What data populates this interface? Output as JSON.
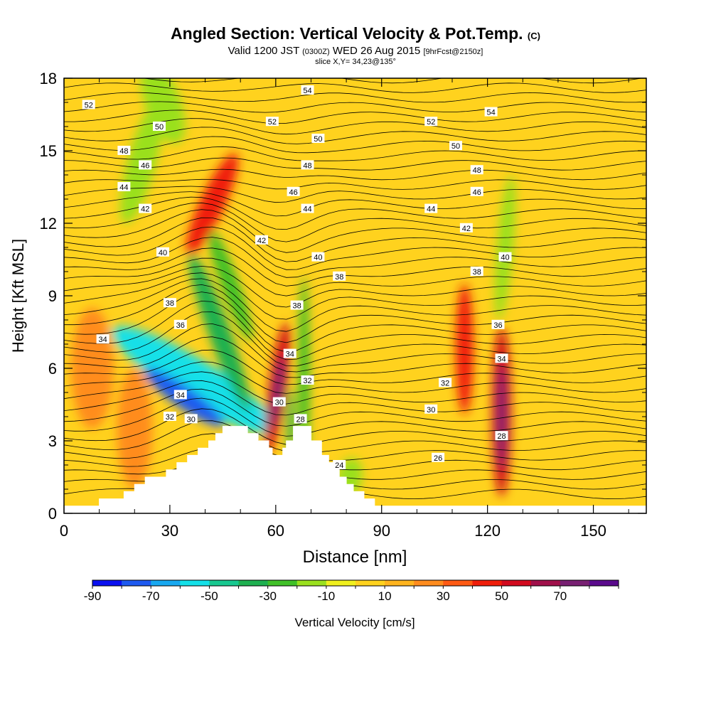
{
  "header": {
    "title": "Angled Section: Vertical Velocity & Pot.Temp.",
    "title_suffix": "(C)",
    "valid_prefix": "Valid 1200 JST",
    "valid_zulu": "(0300Z)",
    "valid_date": "WED 26 Aug 2015",
    "forecast_info": "[9hrFcst@2150z]",
    "slice": "slice X,Y= 34,23@135°"
  },
  "chart_data": {
    "type": "heatmap",
    "xlabel": "Distance [nm]",
    "ylabel": "Height [Kft MSL]",
    "xlim": [
      0,
      165
    ],
    "ylim": [
      0,
      18
    ],
    "xticks": [
      0,
      30,
      60,
      90,
      120,
      150
    ],
    "yticks": [
      0,
      3,
      6,
      9,
      12,
      15,
      18
    ],
    "terrain_kft": [
      [
        0,
        0.3
      ],
      [
        10,
        0.3
      ],
      [
        10,
        0.6
      ],
      [
        17,
        0.6
      ],
      [
        17,
        0.9
      ],
      [
        20,
        0.9
      ],
      [
        20,
        1.2
      ],
      [
        23,
        1.2
      ],
      [
        23,
        1.5
      ],
      [
        29,
        1.5
      ],
      [
        29,
        1.8
      ],
      [
        32,
        1.8
      ],
      [
        32,
        2.1
      ],
      [
        35,
        2.1
      ],
      [
        35,
        2.4
      ],
      [
        38,
        2.4
      ],
      [
        38,
        2.7
      ],
      [
        41,
        2.7
      ],
      [
        41,
        3.0
      ],
      [
        43,
        3.0
      ],
      [
        43,
        3.3
      ],
      [
        45,
        3.3
      ],
      [
        45,
        3.6
      ],
      [
        52,
        3.6
      ],
      [
        52,
        3.3
      ],
      [
        55,
        3.3
      ],
      [
        55,
        3.0
      ],
      [
        58,
        3.0
      ],
      [
        58,
        2.7
      ],
      [
        59,
        2.7
      ],
      [
        59,
        2.4
      ],
      [
        62,
        2.4
      ],
      [
        62,
        2.7
      ],
      [
        63,
        2.7
      ],
      [
        63,
        3.0
      ],
      [
        65,
        3.0
      ],
      [
        65,
        3.6
      ],
      [
        70,
        3.6
      ],
      [
        70,
        3.0
      ],
      [
        73,
        3.0
      ],
      [
        73,
        2.4
      ],
      [
        75,
        2.4
      ],
      [
        75,
        2.1
      ],
      [
        78,
        2.1
      ],
      [
        78,
        1.5
      ],
      [
        80,
        1.5
      ],
      [
        80,
        1.2
      ],
      [
        82,
        1.2
      ],
      [
        82,
        0.9
      ],
      [
        85,
        0.9
      ],
      [
        85,
        0.6
      ],
      [
        88,
        0.6
      ],
      [
        88,
        0.3
      ],
      [
        165,
        0.3
      ]
    ],
    "contour_labels": [
      {
        "x": 7,
        "y": 16.9,
        "v": "52"
      },
      {
        "x": 27,
        "y": 16.0,
        "v": "50"
      },
      {
        "x": 17,
        "y": 15.0,
        "v": "48"
      },
      {
        "x": 23,
        "y": 14.4,
        "v": "46"
      },
      {
        "x": 17,
        "y": 13.5,
        "v": "44"
      },
      {
        "x": 23,
        "y": 12.6,
        "v": "42"
      },
      {
        "x": 28,
        "y": 10.8,
        "v": "40"
      },
      {
        "x": 30,
        "y": 8.7,
        "v": "38"
      },
      {
        "x": 33,
        "y": 7.8,
        "v": "36"
      },
      {
        "x": 11,
        "y": 7.2,
        "v": "34"
      },
      {
        "x": 33,
        "y": 4.9,
        "v": "34"
      },
      {
        "x": 30,
        "y": 4.0,
        "v": "32"
      },
      {
        "x": 36,
        "y": 3.9,
        "v": "30"
      },
      {
        "x": 69,
        "y": 17.5,
        "v": "54"
      },
      {
        "x": 59,
        "y": 16.2,
        "v": "52"
      },
      {
        "x": 72,
        "y": 15.5,
        "v": "50"
      },
      {
        "x": 69,
        "y": 14.4,
        "v": "48"
      },
      {
        "x": 65,
        "y": 13.3,
        "v": "46"
      },
      {
        "x": 69,
        "y": 12.6,
        "v": "44"
      },
      {
        "x": 56,
        "y": 11.3,
        "v": "42"
      },
      {
        "x": 72,
        "y": 10.6,
        "v": "40"
      },
      {
        "x": 78,
        "y": 9.8,
        "v": "38"
      },
      {
        "x": 66,
        "y": 8.6,
        "v": "38"
      },
      {
        "x": 64,
        "y": 6.6,
        "v": "34"
      },
      {
        "x": 69,
        "y": 5.5,
        "v": "32"
      },
      {
        "x": 61,
        "y": 4.6,
        "v": "30"
      },
      {
        "x": 67,
        "y": 3.9,
        "v": "28"
      },
      {
        "x": 78,
        "y": 2.0,
        "v": "24"
      },
      {
        "x": 121,
        "y": 16.6,
        "v": "54"
      },
      {
        "x": 104,
        "y": 16.2,
        "v": "52"
      },
      {
        "x": 111,
        "y": 15.2,
        "v": "50"
      },
      {
        "x": 117,
        "y": 14.2,
        "v": "48"
      },
      {
        "x": 117,
        "y": 13.3,
        "v": "46"
      },
      {
        "x": 104,
        "y": 12.6,
        "v": "44"
      },
      {
        "x": 114,
        "y": 11.8,
        "v": "42"
      },
      {
        "x": 125,
        "y": 10.6,
        "v": "40"
      },
      {
        "x": 117,
        "y": 10.0,
        "v": "38"
      },
      {
        "x": 123,
        "y": 7.8,
        "v": "36"
      },
      {
        "x": 124,
        "y": 6.4,
        "v": "34"
      },
      {
        "x": 108,
        "y": 5.4,
        "v": "32"
      },
      {
        "x": 104,
        "y": 4.3,
        "v": "30"
      },
      {
        "x": 106,
        "y": 2.3,
        "v": "26"
      },
      {
        "x": 124,
        "y": 3.2,
        "v": "28"
      }
    ],
    "velocity_features": [
      {
        "x": 37,
        "y": 5.5,
        "rx": 6,
        "ry": 4,
        "rot": -58,
        "v": -55
      },
      {
        "x": 34,
        "y": 4.8,
        "rx": 3,
        "ry": 2,
        "rot": -55,
        "v": -75
      },
      {
        "x": 44,
        "y": 7.5,
        "rx": 3,
        "ry": 3.5,
        "rot": -20,
        "v": -35
      },
      {
        "x": 47,
        "y": 9.5,
        "rx": 2.5,
        "ry": 2.5,
        "rot": -20,
        "v": -25
      },
      {
        "x": 60.5,
        "y": 5.2,
        "rx": 2.5,
        "ry": 2.7,
        "rot": 8,
        "v": 55
      },
      {
        "x": 60.5,
        "y": 5.0,
        "rx": 1.3,
        "ry": 1.5,
        "rot": 8,
        "v": 70
      },
      {
        "x": 68,
        "y": 5.5,
        "rx": 1.6,
        "ry": 4.3,
        "rot": 0,
        "v": -30
      },
      {
        "x": 64,
        "y": 3.8,
        "rx": 1,
        "ry": 1.4,
        "rot": 0,
        "v": -40
      },
      {
        "x": 42,
        "y": 12.8,
        "rx": 3.5,
        "ry": 2.3,
        "rot": 25,
        "v": 40
      },
      {
        "x": 28,
        "y": 17.0,
        "rx": 5,
        "ry": 1.8,
        "rot": -20,
        "v": -20
      },
      {
        "x": 22,
        "y": 14.5,
        "rx": 4,
        "ry": 2.6,
        "rot": 15,
        "v": -20
      },
      {
        "x": 113.5,
        "y": 6.8,
        "rx": 2.5,
        "ry": 2.7,
        "rot": 0,
        "v": 45
      },
      {
        "x": 124,
        "y": 4.2,
        "rx": 2.7,
        "ry": 3.5,
        "rot": 0,
        "v": 55
      },
      {
        "x": 124,
        "y": 4.0,
        "rx": 1.3,
        "ry": 2.2,
        "rot": 0,
        "v": 70
      },
      {
        "x": 125,
        "y": 11.0,
        "rx": 2.3,
        "ry": 3.0,
        "rot": 5,
        "v": -15
      },
      {
        "x": 81,
        "y": 1.5,
        "rx": 3.5,
        "ry": 0.8,
        "rot": 10,
        "v": -20
      },
      {
        "x": 20,
        "y": 3.5,
        "rx": 5,
        "ry": 2.5,
        "rot": 0,
        "v": 25
      },
      {
        "x": 8,
        "y": 6.0,
        "rx": 6,
        "ry": 2.5,
        "rot": 0,
        "v": 22
      }
    ],
    "colorbar": {
      "label": "Vertical Velocity [cm/s]",
      "tick_labels": [
        "-90",
        "-70",
        "-50",
        "-30",
        "-10",
        "10",
        "30",
        "50",
        "70"
      ],
      "colors": [
        "#0a10f0",
        "#1e5af0",
        "#18a8f0",
        "#14e0e8",
        "#18c890",
        "#1eb050",
        "#40c028",
        "#9ae01e",
        "#f0f01e",
        "#ffd21e",
        "#ffb41e",
        "#ff8c1e",
        "#ff5a14",
        "#f01e0a",
        "#d20a1e",
        "#a0104a",
        "#782072",
        "#5a0a8c"
      ]
    }
  }
}
